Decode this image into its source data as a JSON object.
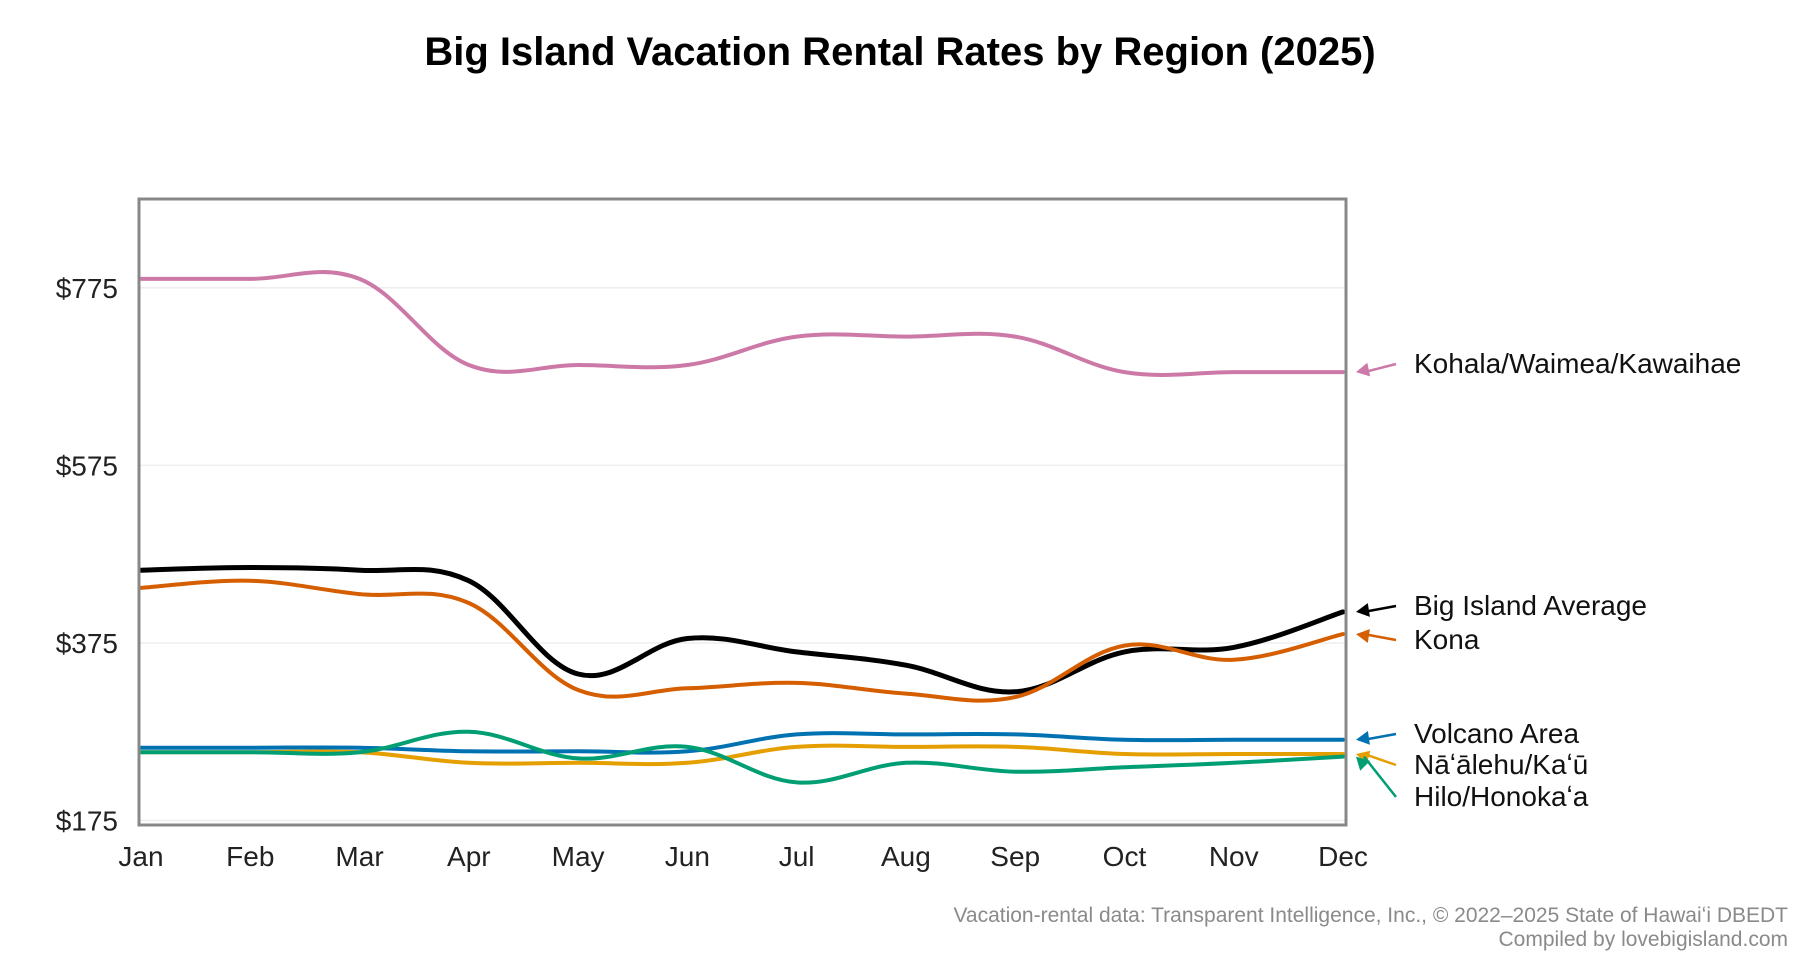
{
  "chart_data": {
    "type": "line",
    "title": "Big Island Vacation Rental Rates by Region (2025)",
    "xlabel": "",
    "ylabel": "",
    "categories": [
      "Jan",
      "Feb",
      "Mar",
      "Apr",
      "May",
      "Jun",
      "Jul",
      "Aug",
      "Sep",
      "Oct",
      "Nov",
      "Dec"
    ],
    "yticks": [
      175,
      375,
      575,
      775
    ],
    "ytick_labels": [
      "$175",
      "$375",
      "$575",
      "$775"
    ],
    "ylim": [
      170,
      875
    ],
    "grid": "horizontal",
    "legend": "right, labels at line ends",
    "series": [
      {
        "name": "Kohala/Waimea/Kawaihae",
        "color": "#cc79a7",
        "values": [
          785,
          785,
          785,
          688,
          688,
          688,
          720,
          720,
          720,
          680,
          680,
          680
        ]
      },
      {
        "name": "Big Island Average",
        "color": "#000000",
        "values": [
          457,
          460,
          457,
          445,
          340,
          380,
          365,
          350,
          320,
          365,
          370,
          410
        ]
      },
      {
        "name": "Kona",
        "color": "#d55e00",
        "values": [
          437,
          445,
          430,
          420,
          322,
          324,
          330,
          318,
          314,
          372,
          356,
          385
        ]
      },
      {
        "name": "Volcano Area",
        "color": "#0072b2",
        "values": [
          257,
          257,
          257,
          253,
          253,
          253,
          272,
          272,
          272,
          266,
          266,
          266
        ]
      },
      {
        "name": "Nāʻālehu/Kaʻū",
        "color": "#e69f00",
        "values": [
          252,
          252,
          252,
          240,
          240,
          240,
          258,
          258,
          258,
          250,
          250,
          250
        ]
      },
      {
        "name": "Hilo/Honokaʻa",
        "color": "#009e73",
        "values": [
          252,
          252,
          252,
          275,
          245,
          258,
          218,
          240,
          230,
          235,
          240,
          247
        ]
      }
    ]
  },
  "footer": {
    "source": "Vacation-rental data: Transparent Intelligence, Inc., © 2022–2025 State of Hawaiʻi DBEDT",
    "credit": "Compiled by lovebigisland.com"
  }
}
